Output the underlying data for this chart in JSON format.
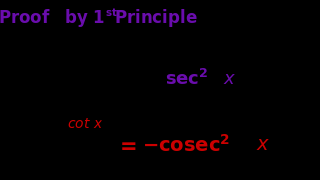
{
  "title_color": "#6A0DAD",
  "bg_color": "#FFFFFF",
  "black_bg": "#000000",
  "eq1_rhs_color": "#6A0DAD",
  "eq2_color": "#CC0000",
  "figsize": [
    3.2,
    1.8
  ],
  "dpi": 100
}
